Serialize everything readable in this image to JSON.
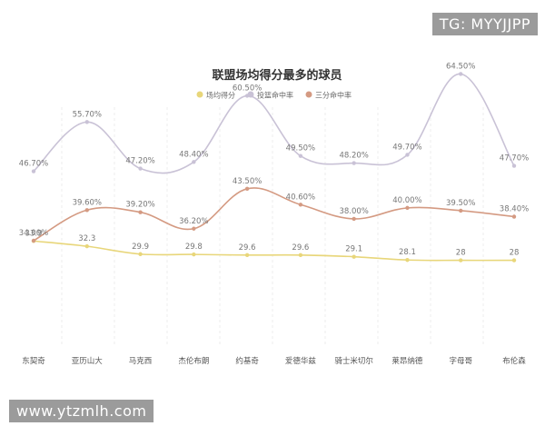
{
  "watermarks": {
    "top_right": "TG: MYYJJPP",
    "bottom_left": "www.ytzmlh.com"
  },
  "chart_data": {
    "type": "line",
    "title": "联盟场均得分最多的球员",
    "legend_position": "top-center",
    "grid": "vertical-dashed",
    "categories": [
      "东契奇",
      "亚历山大",
      "马克西",
      "杰伦布朗",
      "约基奇",
      "爱德华兹",
      "骑士米切尔",
      "莱昂纳德",
      "字母哥",
      "布伦森"
    ],
    "series": [
      {
        "name": "场均得分",
        "color": "#e8d67a",
        "values": [
          33.9,
          32.3,
          29.9,
          29.8,
          29.6,
          29.6,
          29.1,
          28.1,
          28,
          28
        ],
        "labels": [
          "33.9",
          "32.3",
          "29.9",
          "29.8",
          "29.6",
          "29.6",
          "29.1",
          "28.1",
          "28",
          "28"
        ]
      },
      {
        "name": "投篮命中率",
        "color": "#c9c2d6",
        "values": [
          46.7,
          55.7,
          47.2,
          48.4,
          60.5,
          49.5,
          48.2,
          49.7,
          64.5,
          47.7
        ],
        "labels": [
          "46.70%",
          "55.70%",
          "47.20%",
          "48.40%",
          "60.50%",
          "49.50%",
          "48.20%",
          "49.70%",
          "64.50%",
          "47.70%"
        ]
      },
      {
        "name": "三分命中率",
        "color": "#d49a82",
        "values": [
          34.0,
          39.6,
          39.2,
          36.2,
          43.5,
          40.6,
          38.0,
          40.0,
          39.5,
          38.4
        ],
        "labels": [
          "34.00%",
          "39.60%",
          "39.20%",
          "36.20%",
          "43.50%",
          "40.60%",
          "38.00%",
          "40.00%",
          "39.50%",
          "38.40%"
        ]
      }
    ]
  }
}
